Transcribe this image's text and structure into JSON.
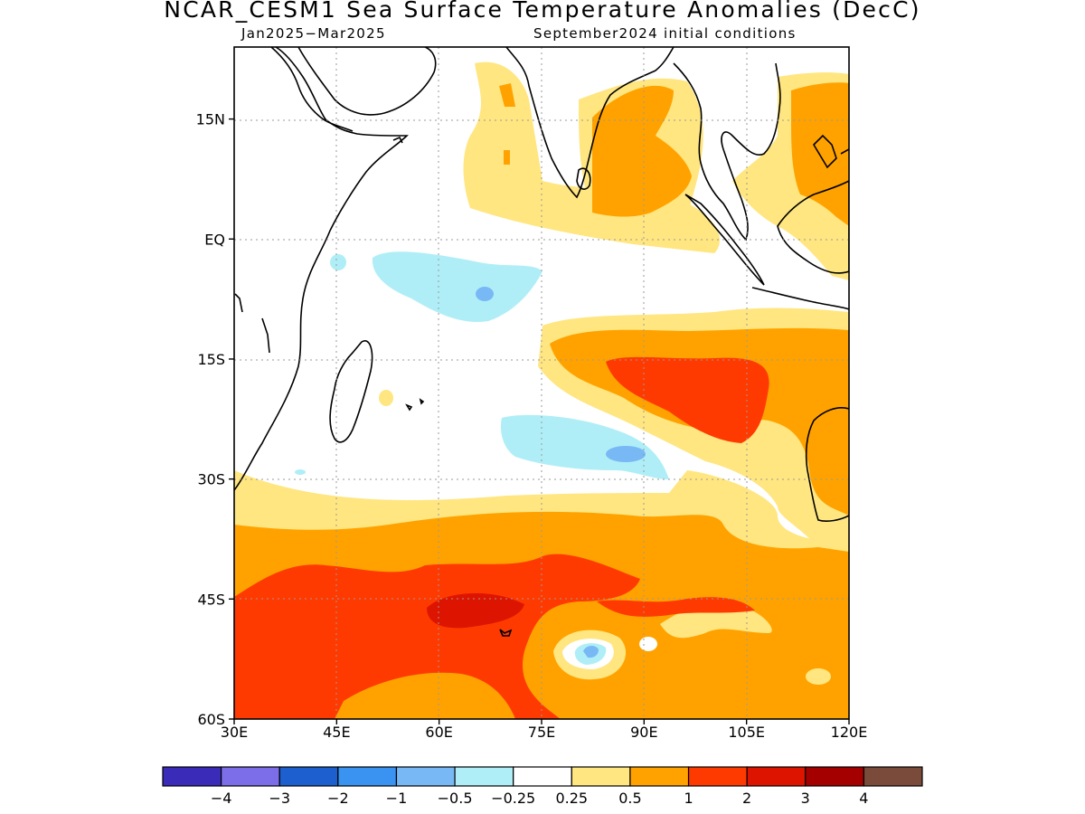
{
  "title": "NCAR_CESM1 Sea Surface Temperature Anomalies (DecC)",
  "subtitle_left": "Jan2025−Mar2025",
  "subtitle_right": "September2024 initial conditions",
  "map": {
    "lat_ticks": [
      {
        "lat": 15,
        "label": "15N"
      },
      {
        "lat": 0,
        "label": "EQ"
      },
      {
        "lat": -15,
        "label": "15S"
      },
      {
        "lat": -30,
        "label": "30S"
      },
      {
        "lat": -45,
        "label": "45S"
      },
      {
        "lat": -60,
        "label": "60S"
      }
    ],
    "lon_ticks": [
      {
        "lon": 30,
        "label": "30E"
      },
      {
        "lon": 45,
        "label": "45E"
      },
      {
        "lon": 60,
        "label": "60E"
      },
      {
        "lon": 75,
        "label": "75E"
      },
      {
        "lon": 90,
        "label": "90E"
      },
      {
        "lon": 105,
        "label": "105E"
      },
      {
        "lon": 120,
        "label": "120E"
      }
    ],
    "lon_range": [
      30,
      120
    ],
    "lat_range": [
      -60,
      24
    ],
    "gridlines": true
  },
  "colorbar": {
    "colors": [
      "#3a2bb8",
      "#7b6ee8",
      "#1e5fd0",
      "#3a93f0",
      "#78b8f5",
      "#b0eef7",
      "#ffffff",
      "#ffe680",
      "#ffa200",
      "#ff3a00",
      "#dd1500",
      "#a50000",
      "#7a4a3a"
    ],
    "labels": [
      "−4",
      "−3",
      "−2",
      "−1",
      "−0.5",
      "−0.25",
      "0.25",
      "0.5",
      "1",
      "2",
      "3",
      "4"
    ]
  }
}
